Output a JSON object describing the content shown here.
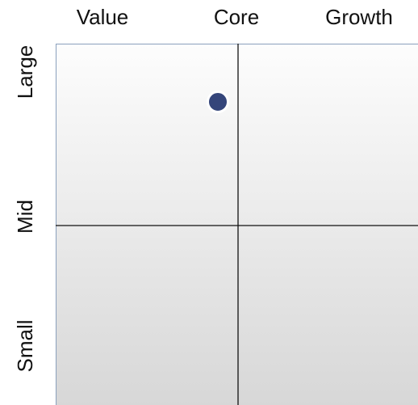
{
  "columns": [
    "Value",
    "Core",
    "Growth"
  ],
  "rows": [
    "Large",
    "Mid",
    "Small"
  ]
}
